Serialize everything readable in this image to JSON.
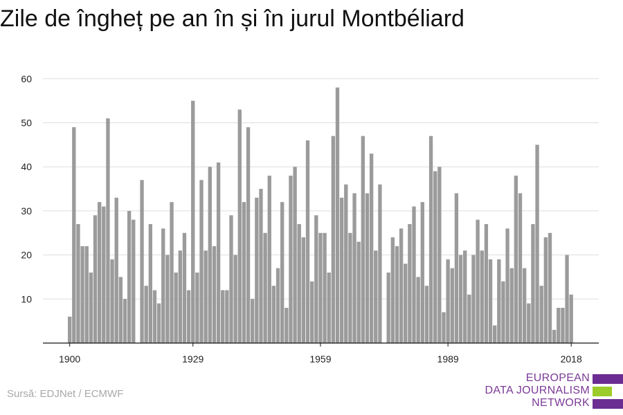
{
  "title": "Zile de îngheț pe an în și în jurul Montbéliard",
  "source": "Sursă: EDJNet / ECMWF",
  "logo": {
    "lines": [
      "EUROPEAN",
      "DATA JOURNALISM",
      "NETWORK"
    ],
    "colors": {
      "text": "#7a3a96",
      "bar_purple": "#6b2d91",
      "bar_green": "#9ccc2a"
    }
  },
  "colors": {
    "bar": "#9b9b9b",
    "grid": "#dddddd",
    "axis": "#111111",
    "tick_text": "#222222"
  },
  "chart_data": {
    "type": "bar",
    "title": "Zile de îngheț pe an în și în jurul Montbéliard",
    "xlabel": "",
    "ylabel": "",
    "ylim": [
      0,
      62
    ],
    "yticks": [
      10,
      20,
      30,
      40,
      50,
      60
    ],
    "xticks": [
      1900,
      1929,
      1959,
      1989,
      2018
    ],
    "grid": true,
    "x": [
      1900,
      1901,
      1902,
      1903,
      1904,
      1905,
      1906,
      1907,
      1908,
      1909,
      1910,
      1911,
      1912,
      1913,
      1914,
      1915,
      1916,
      1917,
      1918,
      1919,
      1920,
      1921,
      1922,
      1923,
      1924,
      1925,
      1926,
      1927,
      1928,
      1929,
      1930,
      1931,
      1932,
      1933,
      1934,
      1935,
      1936,
      1937,
      1938,
      1939,
      1940,
      1941,
      1942,
      1943,
      1944,
      1945,
      1946,
      1947,
      1948,
      1949,
      1950,
      1951,
      1952,
      1953,
      1954,
      1955,
      1956,
      1957,
      1958,
      1959,
      1960,
      1961,
      1962,
      1963,
      1964,
      1965,
      1966,
      1967,
      1968,
      1969,
      1970,
      1971,
      1972,
      1973,
      1974,
      1975,
      1976,
      1977,
      1978,
      1979,
      1980,
      1981,
      1982,
      1983,
      1984,
      1985,
      1986,
      1987,
      1988,
      1989,
      1990,
      1991,
      1992,
      1993,
      1994,
      1995,
      1996,
      1997,
      1998,
      1999,
      2000,
      2001,
      2002,
      2003,
      2004,
      2005,
      2006,
      2007,
      2008,
      2009,
      2010,
      2011,
      2012,
      2013,
      2014,
      2015,
      2016,
      2017,
      2018
    ],
    "values": [
      6,
      49,
      27,
      22,
      22,
      16,
      29,
      32,
      31,
      51,
      19,
      33,
      15,
      10,
      30,
      28,
      0,
      37,
      13,
      27,
      12,
      9,
      26,
      20,
      32,
      16,
      21,
      25,
      12,
      55,
      16,
      37,
      21,
      40,
      22,
      41,
      12,
      12,
      29,
      20,
      53,
      32,
      49,
      10,
      33,
      35,
      25,
      38,
      13,
      17,
      32,
      8,
      38,
      40,
      27,
      24,
      46,
      14,
      29,
      25,
      25,
      16,
      47,
      58,
      33,
      36,
      25,
      34,
      23,
      47,
      34,
      43,
      21,
      36,
      0,
      16,
      24,
      22,
      26,
      18,
      27,
      31,
      15,
      32,
      13,
      47,
      39,
      40,
      7,
      19,
      17,
      34,
      20,
      21,
      11,
      20,
      28,
      21,
      27,
      19,
      4,
      19,
      14,
      26,
      17,
      38,
      34,
      17,
      9,
      27,
      45,
      13,
      24,
      25,
      3,
      8,
      8,
      20,
      11
    ]
  }
}
